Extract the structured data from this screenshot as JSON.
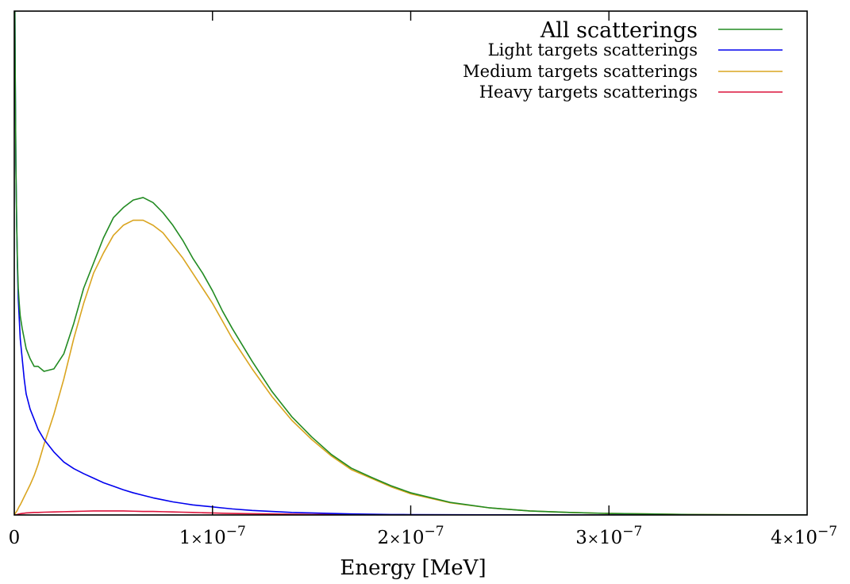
{
  "chart_data": {
    "type": "line",
    "xlabel": "Energy [MeV]",
    "ylabel": "",
    "xlim": [
      0,
      4e-07
    ],
    "ylim": [
      0,
      1
    ],
    "grid": false,
    "legend_position": "top-right",
    "x_ticks": [
      {
        "value": 0,
        "label": "0"
      },
      {
        "value": 1e-07,
        "mantissa": "1",
        "exp": "−7",
        "times": "×",
        "base": "10"
      },
      {
        "value": 2e-07,
        "mantissa": "2",
        "exp": "−7",
        "times": "×",
        "base": "10"
      },
      {
        "value": 3e-07,
        "mantissa": "3",
        "exp": "−7",
        "times": "×",
        "base": "10"
      },
      {
        "value": 4e-07,
        "mantissa": "4",
        "exp": "−7",
        "times": "×",
        "base": "10"
      }
    ],
    "x": [
      0,
      1.5e-10,
      3e-10,
      5e-10,
      8e-10,
      1.2e-09,
      1.6e-09,
      2e-09,
      2.5e-09,
      3e-09,
      4e-09,
      5e-09,
      6e-09,
      8e-09,
      1e-08,
      1.2e-08,
      1.5e-08,
      2e-08,
      2.5e-08,
      3e-08,
      3.5e-08,
      4e-08,
      4.5e-08,
      5e-08,
      5.5e-08,
      6e-08,
      6.5e-08,
      7e-08,
      7.5e-08,
      8e-08,
      8.5e-08,
      9e-08,
      9.5e-08,
      1e-07,
      1.05e-07,
      1.1e-07,
      1.2e-07,
      1.3e-07,
      1.4e-07,
      1.5e-07,
      1.6e-07,
      1.7e-07,
      1.8e-07,
      1.9e-07,
      2e-07,
      2.2e-07,
      2.4e-07,
      2.6e-07,
      2.8e-07,
      3e-07,
      3.2e-07,
      3.4e-07,
      3.6e-07,
      3.8e-07,
      4e-07
    ],
    "series": [
      {
        "name": "All scatterings",
        "color": "#228b22",
        "values": [
          1.0,
          1.0,
          1.0,
          0.86,
          0.7,
          0.58,
          0.5,
          0.45,
          0.42,
          0.395,
          0.37,
          0.35,
          0.33,
          0.31,
          0.295,
          0.295,
          0.285,
          0.29,
          0.32,
          0.38,
          0.45,
          0.5,
          0.55,
          0.59,
          0.61,
          0.625,
          0.63,
          0.62,
          0.6,
          0.575,
          0.545,
          0.51,
          0.48,
          0.445,
          0.405,
          0.37,
          0.305,
          0.245,
          0.195,
          0.155,
          0.12,
          0.093,
          0.075,
          0.058,
          0.044,
          0.025,
          0.014,
          0.008,
          0.005,
          0.003,
          0.002,
          0.001,
          0.0005,
          0.0003,
          0.0
        ]
      },
      {
        "name": "Light targets scatterings",
        "color": "#0000ee",
        "values": [
          1.0,
          1.0,
          1.0,
          0.86,
          0.7,
          0.58,
          0.49,
          0.43,
          0.39,
          0.35,
          0.31,
          0.27,
          0.24,
          0.21,
          0.19,
          0.17,
          0.15,
          0.125,
          0.105,
          0.092,
          0.082,
          0.073,
          0.064,
          0.057,
          0.05,
          0.044,
          0.039,
          0.034,
          0.03,
          0.026,
          0.023,
          0.02,
          0.018,
          0.016,
          0.014,
          0.012,
          0.009,
          0.007,
          0.005,
          0.004,
          0.003,
          0.002,
          0.0015,
          0.001,
          0.0008,
          0.0005,
          0.0003,
          0.0002,
          0.0001,
          0.0,
          0.0,
          0.0,
          0.0,
          0.0,
          0.0
        ]
      },
      {
        "name": "Medium targets scatterings",
        "color": "#daa520",
        "values": [
          0.0,
          0.001,
          0.002,
          0.003,
          0.005,
          0.007,
          0.01,
          0.013,
          0.017,
          0.02,
          0.028,
          0.036,
          0.044,
          0.06,
          0.078,
          0.1,
          0.14,
          0.2,
          0.27,
          0.35,
          0.42,
          0.48,
          0.52,
          0.555,
          0.575,
          0.585,
          0.585,
          0.575,
          0.56,
          0.535,
          0.51,
          0.48,
          0.45,
          0.42,
          0.385,
          0.35,
          0.29,
          0.235,
          0.188,
          0.15,
          0.117,
          0.09,
          0.073,
          0.056,
          0.042,
          0.024,
          0.014,
          0.008,
          0.005,
          0.003,
          0.002,
          0.001,
          0.0005,
          0.0003,
          0.0
        ]
      },
      {
        "name": "Heavy targets scatterings",
        "color": "#dc143c",
        "values": [
          0.0,
          0.0,
          0.0,
          0.0,
          0.0,
          0.0005,
          0.001,
          0.0015,
          0.002,
          0.0025,
          0.003,
          0.0035,
          0.004,
          0.0045,
          0.005,
          0.005,
          0.0055,
          0.006,
          0.0065,
          0.007,
          0.0075,
          0.008,
          0.008,
          0.008,
          0.008,
          0.0075,
          0.007,
          0.007,
          0.0065,
          0.006,
          0.0055,
          0.005,
          0.0045,
          0.004,
          0.0035,
          0.003,
          0.0025,
          0.002,
          0.0015,
          0.001,
          0.001,
          0.0008,
          0.0006,
          0.0004,
          0.0003,
          0.0002,
          0.0001,
          0.0,
          0.0,
          0.0,
          0.0,
          0.0,
          0.0,
          0.0,
          0.0
        ]
      }
    ]
  }
}
